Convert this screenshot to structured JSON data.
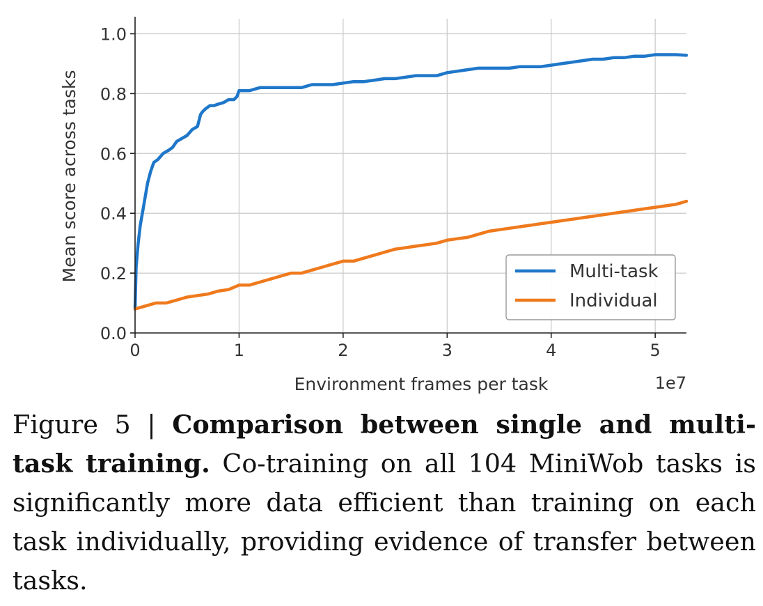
{
  "chart_data": {
    "type": "line",
    "xlabel": "Environment frames per task",
    "ylabel": "Mean score across tasks",
    "x_offset_label": "1e7",
    "xlim": [
      0,
      5.3
    ],
    "ylim": [
      0,
      1.05
    ],
    "x_ticks": [
      0,
      1,
      2,
      3,
      4,
      5
    ],
    "x_tick_labels": [
      "0",
      "1",
      "2",
      "3",
      "4",
      "5"
    ],
    "y_ticks": [
      0.0,
      0.2,
      0.4,
      0.6,
      0.8,
      1.0
    ],
    "y_tick_labels": [
      "0.0",
      "0.2",
      "0.4",
      "0.6",
      "0.8",
      "1.0"
    ],
    "grid": true,
    "legend_position": "lower-right",
    "series": [
      {
        "name": "Multi-task",
        "color": "#1f77c9",
        "x": [
          0,
          0.01,
          0.03,
          0.05,
          0.08,
          0.12,
          0.15,
          0.18,
          0.22,
          0.27,
          0.32,
          0.36,
          0.4,
          0.45,
          0.5,
          0.55,
          0.6,
          0.63,
          0.65,
          0.68,
          0.72,
          0.76,
          0.8,
          0.85,
          0.9,
          0.95,
          0.98,
          1.0,
          1.05,
          1.1,
          1.2,
          1.3,
          1.4,
          1.5,
          1.6,
          1.7,
          1.8,
          1.9,
          2.0,
          2.1,
          2.2,
          2.3,
          2.4,
          2.5,
          2.6,
          2.7,
          2.8,
          2.9,
          3.0,
          3.1,
          3.2,
          3.3,
          3.4,
          3.5,
          3.6,
          3.7,
          3.8,
          3.9,
          4.0,
          4.1,
          4.2,
          4.3,
          4.4,
          4.5,
          4.6,
          4.7,
          4.8,
          4.9,
          5.0,
          5.1,
          5.2,
          5.3
        ],
        "y": [
          0.08,
          0.22,
          0.3,
          0.36,
          0.42,
          0.5,
          0.54,
          0.57,
          0.58,
          0.6,
          0.61,
          0.62,
          0.64,
          0.65,
          0.66,
          0.68,
          0.69,
          0.73,
          0.74,
          0.75,
          0.76,
          0.76,
          0.765,
          0.77,
          0.78,
          0.78,
          0.79,
          0.81,
          0.81,
          0.81,
          0.82,
          0.82,
          0.82,
          0.82,
          0.82,
          0.83,
          0.83,
          0.83,
          0.835,
          0.84,
          0.84,
          0.845,
          0.85,
          0.85,
          0.855,
          0.86,
          0.86,
          0.86,
          0.87,
          0.875,
          0.88,
          0.885,
          0.885,
          0.885,
          0.885,
          0.89,
          0.89,
          0.89,
          0.895,
          0.9,
          0.905,
          0.91,
          0.915,
          0.915,
          0.92,
          0.92,
          0.925,
          0.925,
          0.93,
          0.93,
          0.93,
          0.928
        ]
      },
      {
        "name": "Individual",
        "color": "#ef7a1d",
        "x": [
          0,
          0.1,
          0.2,
          0.3,
          0.4,
          0.5,
          0.6,
          0.7,
          0.8,
          0.9,
          1.0,
          1.1,
          1.2,
          1.3,
          1.4,
          1.5,
          1.6,
          1.7,
          1.8,
          1.9,
          2.0,
          2.1,
          2.2,
          2.3,
          2.4,
          2.5,
          2.6,
          2.7,
          2.8,
          2.9,
          3.0,
          3.1,
          3.2,
          3.3,
          3.4,
          3.5,
          3.6,
          3.7,
          3.8,
          3.9,
          4.0,
          4.1,
          4.2,
          4.3,
          4.4,
          4.5,
          4.6,
          4.7,
          4.8,
          4.9,
          5.0,
          5.1,
          5.2,
          5.3
        ],
        "y": [
          0.08,
          0.09,
          0.1,
          0.1,
          0.11,
          0.12,
          0.125,
          0.13,
          0.14,
          0.145,
          0.16,
          0.16,
          0.17,
          0.18,
          0.19,
          0.2,
          0.2,
          0.21,
          0.22,
          0.23,
          0.24,
          0.24,
          0.25,
          0.26,
          0.27,
          0.28,
          0.285,
          0.29,
          0.295,
          0.3,
          0.31,
          0.315,
          0.32,
          0.33,
          0.34,
          0.345,
          0.35,
          0.355,
          0.36,
          0.365,
          0.37,
          0.375,
          0.38,
          0.385,
          0.39,
          0.395,
          0.4,
          0.405,
          0.41,
          0.415,
          0.42,
          0.425,
          0.43,
          0.44
        ]
      }
    ]
  },
  "caption": {
    "figure_label": "Figure 5 | ",
    "title": "Comparison between single and multi-task training.",
    "body": " Co-training on all 104 MiniWob tasks is significantly more data efficient than training on each task individually, providing evidence of transfer between tasks."
  }
}
